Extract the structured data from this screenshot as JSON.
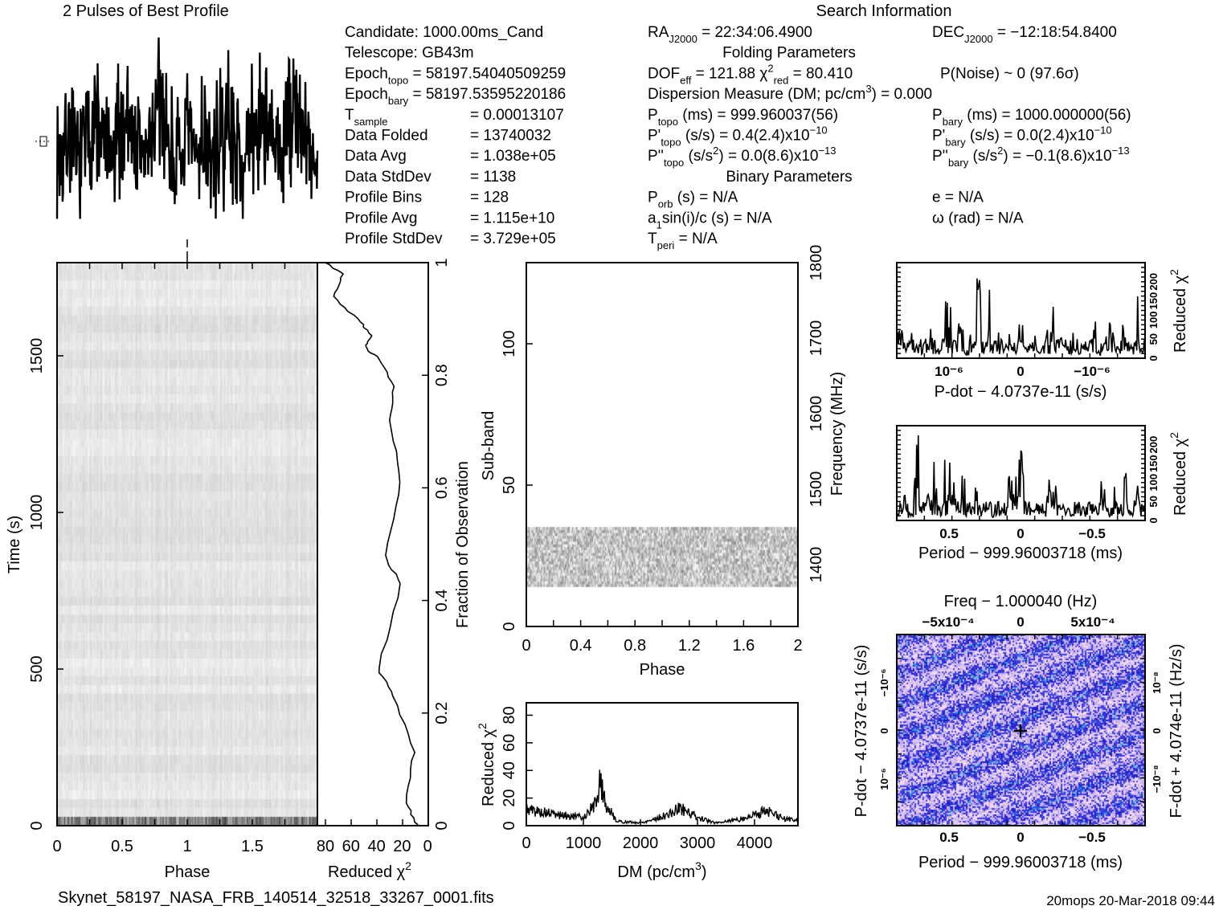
{
  "footer": {
    "filename": "Skynet_58197_NASA_FRB_140514_32518_33267_0001.fits",
    "stamp": "20mops 20-Mar-2018 09:44"
  },
  "header": {
    "profile_title": "2 Pulses of Best Profile",
    "search_title": "Search Information",
    "left_rows": [
      {
        "segs": [
          {
            "t": "Candidate:  1000.00ms_Cand"
          }
        ]
      },
      {
        "segs": [
          {
            "t": "Telescope:  GB43m"
          }
        ]
      },
      {
        "segs": [
          {
            "t": "Epoch"
          },
          {
            "t": "topo",
            "s": "sub"
          },
          {
            "t": " = 58197.54040509259"
          }
        ]
      },
      {
        "segs": [
          {
            "t": "Epoch"
          },
          {
            "t": "bary",
            "s": "sub"
          },
          {
            "t": " = 58197.53595220186"
          }
        ]
      },
      {
        "segs": [
          {
            "t": "T"
          },
          {
            "t": "sample",
            "s": "sub"
          }
        ],
        "value": "=   0.00013107"
      },
      {
        "segs": [
          {
            "t": "Data Folded"
          }
        ],
        "value": "=   13740032"
      },
      {
        "segs": [
          {
            "t": "Data Avg"
          }
        ],
        "value": "=   1.038e+05"
      },
      {
        "segs": [
          {
            "t": "Data StdDev"
          }
        ],
        "value": "=   1138"
      },
      {
        "segs": [
          {
            "t": "Profile Bins"
          }
        ],
        "value": "=   128"
      },
      {
        "segs": [
          {
            "t": "Profile Avg"
          }
        ],
        "value": "=   1.115e+10"
      },
      {
        "segs": [
          {
            "t": "Profile StdDev"
          }
        ],
        "value": "=   3.729e+05"
      }
    ],
    "mid_rows": [
      {
        "row": 0,
        "segs": [
          {
            "t": "RA"
          },
          {
            "t": "J2000",
            "s": "sub"
          },
          {
            "t": " = 22:34:06.4900"
          }
        ]
      },
      {
        "row": 1,
        "center": true,
        "segs": [
          {
            "t": "Folding Parameters"
          }
        ]
      },
      {
        "row": 2,
        "segs": [
          {
            "t": "DOF"
          },
          {
            "t": "eff",
            "s": "sub"
          },
          {
            "t": " = 121.88  χ"
          },
          {
            "t": "2",
            "s": "sup"
          },
          {
            "t": "red",
            "s": "sub"
          },
          {
            "t": " = 80.410"
          }
        ]
      },
      {
        "row": 3,
        "segs": [
          {
            "t": "Dispersion Measure (DM; pc/cm"
          },
          {
            "t": "3",
            "s": "sup"
          },
          {
            "t": ") = 0.000"
          }
        ]
      },
      {
        "row": 4,
        "segs": [
          {
            "t": "P"
          },
          {
            "t": "topo",
            "s": "sub"
          },
          {
            "t": " (ms) =  999.960037(56)"
          }
        ]
      },
      {
        "row": 5,
        "segs": [
          {
            "t": "P'"
          },
          {
            "t": "topo",
            "s": "sub"
          },
          {
            "t": " (s/s) =  0.4(2.4)x10"
          },
          {
            "t": "−10",
            "s": "sup"
          }
        ]
      },
      {
        "row": 6,
        "segs": [
          {
            "t": "P''"
          },
          {
            "t": "topo",
            "s": "sub"
          },
          {
            "t": " (s/s"
          },
          {
            "t": "2",
            "s": "sup"
          },
          {
            "t": ") = 0.0(8.6)x10"
          },
          {
            "t": "−13",
            "s": "sup"
          }
        ]
      },
      {
        "row": 7,
        "center": true,
        "segs": [
          {
            "t": "Binary Parameters"
          }
        ]
      },
      {
        "row": 8,
        "segs": [
          {
            "t": "P"
          },
          {
            "t": "orb",
            "s": "sub"
          },
          {
            "t": " (s) = N/A"
          }
        ]
      },
      {
        "row": 9,
        "segs": [
          {
            "t": "a"
          },
          {
            "t": "1",
            "s": "sub"
          },
          {
            "t": "sin(i)/c (s) = N/A"
          }
        ]
      },
      {
        "row": 10,
        "segs": [
          {
            "t": "T"
          },
          {
            "t": "peri",
            "s": "sub"
          },
          {
            "t": " = N/A"
          }
        ]
      }
    ],
    "right_rows": [
      {
        "row": 0,
        "segs": [
          {
            "t": "DEC"
          },
          {
            "t": "J2000",
            "s": "sub"
          },
          {
            "t": " = −12:18:54.8400"
          }
        ]
      },
      {
        "row": 2,
        "segs": [
          {
            "t": "P(Noise) ~ 0    (97.6σ)"
          }
        ]
      },
      {
        "row": 4,
        "segs": [
          {
            "t": "P"
          },
          {
            "t": "bary",
            "s": "sub"
          },
          {
            "t": " (ms) =  1000.000000(56)"
          }
        ]
      },
      {
        "row": 5,
        "segs": [
          {
            "t": "P'"
          },
          {
            "t": "bary",
            "s": "sub"
          },
          {
            "t": " (s/s) = 0.0(2.4)x10"
          },
          {
            "t": "−10",
            "s": "sup"
          }
        ]
      },
      {
        "row": 6,
        "segs": [
          {
            "t": "P''"
          },
          {
            "t": "bary",
            "s": "sub"
          },
          {
            "t": " (s/s"
          },
          {
            "t": "2",
            "s": "sup"
          },
          {
            "t": ") = −0.1(8.6)x10"
          },
          {
            "t": "−13",
            "s": "sup"
          }
        ]
      },
      {
        "row": 8,
        "segs": [
          {
            "t": "e = N/A"
          }
        ]
      },
      {
        "row": 9,
        "segs": [
          {
            "t": "ω (rad) = N/A"
          }
        ]
      }
    ]
  },
  "chart_data": [
    {
      "id": "profile",
      "type": "line",
      "title": "2 Pulses of Best Profile",
      "xlabel": "",
      "ylabel": "",
      "xlim": [
        0,
        2
      ],
      "envelope": [
        0.55,
        0.7,
        0.5,
        0.65,
        0.8,
        0.6,
        0.5,
        0.7,
        0.85,
        0.6,
        0.55,
        0.75,
        0.9,
        0.6,
        0.5,
        0.65,
        0.55,
        0.7,
        0.5,
        0.65,
        0.8,
        0.6,
        0.5,
        0.7,
        0.85,
        0.6,
        0.55,
        0.75,
        0.9,
        0.6,
        0.5,
        0.65
      ]
    },
    {
      "id": "time-phase",
      "type": "heatmap",
      "xlabel": "Phase",
      "ylabel": "Time (s)",
      "xlim": [
        0,
        2
      ],
      "ylim": [
        0,
        1800
      ],
      "xticks": [
        "0",
        "0.5",
        "1",
        "1.5"
      ],
      "yticks": [
        "0",
        "500",
        "1000",
        "1500"
      ]
    },
    {
      "id": "chi-vs-time",
      "type": "line",
      "xlabel": "Reduced χ",
      "xlabel_sup": "2",
      "ylabel": "Fraction of Observation",
      "xlim": [
        86,
        0
      ],
      "ylim": [
        0,
        1
      ],
      "xticks": [
        "80",
        "60",
        "40",
        "20",
        "0"
      ],
      "yticks": [
        "0",
        "0.2",
        "0.4",
        "0.6",
        "0.8",
        "1"
      ],
      "x": [
        8,
        17,
        11,
        27,
        39,
        21,
        34,
        21,
        30,
        27,
        39,
        49,
        44,
        55,
        74,
        67,
        80
      ],
      "y": [
        0,
        0.04,
        0.13,
        0.23,
        0.28,
        0.43,
        0.48,
        0.61,
        0.72,
        0.78,
        0.83,
        0.85,
        0.87,
        0.9,
        0.94,
        0.98,
        1.0
      ]
    },
    {
      "id": "subbands",
      "type": "heatmap",
      "xlabel": "Phase",
      "ylabel": "Sub-band",
      "y2label": "Frequency (MHz)",
      "xlim": [
        0,
        2
      ],
      "ylim": [
        0,
        128
      ],
      "active_subbands": [
        14,
        35
      ],
      "xticks": [
        "0",
        "0.4",
        "0.8",
        "1.2",
        "1.6",
        "2"
      ],
      "yticks": [
        "0",
        "50",
        "100"
      ],
      "y2ticks": [
        "1400",
        "1500",
        "1600",
        "1700",
        "1800"
      ]
    },
    {
      "id": "dm",
      "type": "line",
      "xlabel": "DM (pc/cm",
      "xlabel_sup": "3",
      "xlabel_end": ")",
      "ylabel": "Reduced χ",
      "ylabel_sup": "2",
      "xlim": [
        0,
        4760
      ],
      "ylim": [
        0,
        89
      ],
      "xticks": [
        "0",
        "1000",
        "2000",
        "3000",
        "4000"
      ],
      "yticks": [
        "0",
        "20",
        "40",
        "60",
        "80"
      ],
      "x": [
        0,
        500,
        1000,
        1200,
        1300,
        1400,
        1600,
        2000,
        2500,
        2700,
        3000,
        3300,
        3800,
        4200,
        4500,
        4760
      ],
      "y": [
        12,
        8,
        6,
        15,
        33,
        14,
        3,
        2,
        8,
        13,
        6,
        2,
        5,
        11,
        5,
        4
      ]
    },
    {
      "id": "pdot",
      "type": "line",
      "xlabel": "P-dot − 4.0737e-11 (s/s)",
      "ylabel": "Reduced χ",
      "ylabel_sup": "2",
      "ylim": [
        0,
        250
      ],
      "xticks": [
        "10⁻⁶",
        "0",
        "−10⁻⁶"
      ],
      "yticks": [
        "0",
        "50",
        "100",
        "150",
        "200"
      ],
      "y": [
        70,
        40,
        120,
        30,
        60,
        100,
        25,
        50,
        140,
        40,
        90,
        20,
        60,
        230,
        30,
        220,
        80,
        30,
        60,
        25,
        90,
        40,
        60,
        20,
        70,
        150,
        40,
        60,
        30,
        70,
        30,
        40,
        90,
        20,
        60,
        120,
        30,
        80,
        40,
        160,
        30,
        50
      ]
    },
    {
      "id": "period",
      "type": "line",
      "xlabel": "Period − 999.96003718 (ms)",
      "ylabel": "Reduced χ",
      "ylabel_sup": "2",
      "ylim": [
        0,
        250
      ],
      "xticks": [
        "0.5",
        "0",
        "−0.5"
      ],
      "yticks": [
        "0",
        "50",
        "100",
        "150",
        "200"
      ],
      "y": [
        40,
        80,
        20,
        220,
        40,
        70,
        150,
        30,
        160,
        140,
        60,
        130,
        40,
        100,
        30,
        60,
        20,
        50,
        30,
        110,
        130,
        180,
        60,
        40,
        80,
        30,
        120,
        90,
        40,
        30,
        20,
        40,
        30,
        100,
        40,
        110,
        30,
        90,
        40,
        150,
        30,
        170,
        40,
        30
      ]
    },
    {
      "id": "p-pdot",
      "type": "heatmap",
      "title": "Freq − 1.000040 (Hz)",
      "xlabel": "Period − 999.96003718 (ms)",
      "ylabel": "P-dot − 4.0737e-11 (s/s)",
      "y2label": "F-dot + 4.074e-11 (Hz/s)",
      "xticks": [
        "0.5",
        "0",
        "−0.5"
      ],
      "x2ticks": [
        "−5x10⁻⁴",
        "0",
        "5x10⁻⁴"
      ],
      "yticks": [
        "10⁻⁶",
        "0",
        "−10⁻⁶"
      ],
      "y2ticks": [
        "−10⁻⁸",
        "0",
        "10⁻⁸"
      ],
      "colors": [
        "#f0d8f0",
        "#c8b0ee",
        "#4040e0",
        "#2020c8",
        "#30a0d8"
      ]
    }
  ]
}
